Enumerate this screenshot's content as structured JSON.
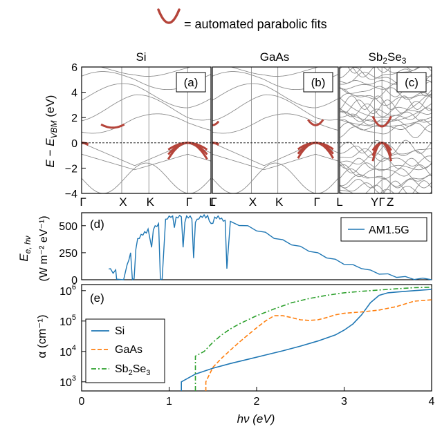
{
  "legend_top": {
    "text": "= automated parabolic fits",
    "fit_color": "#b5443a"
  },
  "colors": {
    "band": "#8c8c8c",
    "fit": "#b5443a",
    "si": "#1f77b4",
    "gaas": "#ff7f0e",
    "sb2se3": "#2ca02c",
    "spectrum": "#1f77b4"
  },
  "chart_data": [
    {
      "type": "line",
      "panel": "(a)",
      "title": "Si",
      "ylabel": "E − E_VBM (eV)",
      "ylim": [
        -4,
        6
      ],
      "yticks": [
        "6",
        "4",
        "2",
        "0",
        "−2",
        "−4"
      ],
      "kpath": [
        "Γ",
        "X",
        "K",
        "Γ",
        "L"
      ],
      "kpos": [
        0,
        0.31,
        0.52,
        0.82,
        1.0
      ],
      "vbm": 0,
      "cbm": 1.2,
      "fits": [
        {
          "k": 0.24,
          "e": 1.2,
          "dir": "up",
          "curv": 1.6,
          "half_width": 0.09
        },
        {
          "k": 0.0,
          "e": 0.0,
          "dir": "down",
          "curv": 1.4,
          "half_width": 0.05
        },
        {
          "k": 0.82,
          "e": 0.0,
          "dir": "down",
          "curv": 1.2,
          "half_width": 0.15
        }
      ]
    },
    {
      "type": "line",
      "panel": "(b)",
      "title": "GaAs",
      "ylim": [
        -4,
        6
      ],
      "kpath": [
        "Γ",
        "X",
        "K",
        "Γ",
        "L"
      ],
      "kpos": [
        0,
        0.31,
        0.52,
        0.82,
        1.0
      ],
      "vbm": 0,
      "cbm": 1.4,
      "fits": [
        {
          "k": 0.0,
          "e": 1.4,
          "dir": "up",
          "curv": 6.0,
          "half_width": 0.05
        },
        {
          "k": 0.82,
          "e": 1.4,
          "dir": "up",
          "curv": 6.0,
          "half_width": 0.06
        },
        {
          "k": 0.0,
          "e": 0.0,
          "dir": "down",
          "curv": 1.4,
          "half_width": 0.05
        },
        {
          "k": 0.82,
          "e": 0.0,
          "dir": "down",
          "curv": 1.3,
          "half_width": 0.14
        }
      ]
    },
    {
      "type": "line",
      "panel": "(c)",
      "title": "Sb2Se3",
      "title_main": "Sb",
      "title_sub1": "2",
      "title_mid": "Se",
      "title_sub2": "3",
      "ylim": [
        -4,
        6
      ],
      "kpath": [
        "Y",
        "Γ",
        "Z"
      ],
      "kpos": [
        0.38,
        0.46,
        0.55
      ],
      "vbm": 0,
      "cbm": 1.3,
      "fits": [
        {
          "k": 0.46,
          "e": 1.3,
          "dir": "up",
          "curv": 4.0,
          "half_width": 0.1
        },
        {
          "k": 0.46,
          "e": 0.0,
          "dir": "down",
          "curv": 3.0,
          "half_width": 0.1
        }
      ]
    },
    {
      "type": "line",
      "panel": "(d)",
      "ylabel_main": "E",
      "ylabel_sub": "e, hν",
      "ylabel_units": "(W m⁻² eV⁻¹)",
      "xlim": [
        0,
        4
      ],
      "ylim": [
        0,
        620
      ],
      "yticks": [
        0,
        250,
        500
      ],
      "series": [
        {
          "name": "AM1.5G",
          "x": [
            0.31,
            0.33,
            0.36,
            0.39,
            0.4,
            0.48,
            0.52,
            0.54,
            0.56,
            0.58,
            0.6,
            0.62,
            0.64,
            0.66,
            0.68,
            0.7,
            0.72,
            0.74,
            0.76,
            0.78,
            0.8,
            0.82,
            0.84,
            0.86,
            0.88,
            0.9,
            0.92,
            0.94,
            0.96,
            0.98,
            1.0,
            1.02,
            1.04,
            1.06,
            1.08,
            1.1,
            1.12,
            1.14,
            1.16,
            1.18,
            1.2,
            1.22,
            1.24,
            1.26,
            1.28,
            1.3,
            1.32,
            1.34,
            1.36,
            1.38,
            1.4,
            1.42,
            1.44,
            1.46,
            1.48,
            1.5,
            1.52,
            1.54,
            1.56,
            1.58,
            1.6,
            1.62,
            1.64,
            1.66,
            1.7,
            1.8,
            1.9,
            2.0,
            2.1,
            2.2,
            2.3,
            2.4,
            2.5,
            2.6,
            2.7,
            2.8,
            2.9,
            3.0,
            3.1,
            3.2,
            3.3,
            3.4,
            3.5,
            3.6,
            3.7,
            3.8,
            3.9,
            4.0
          ],
          "y": [
            100,
            120,
            60,
            110,
            5,
            2,
            140,
            200,
            250,
            5,
            10,
            300,
            380,
            400,
            420,
            430,
            445,
            450,
            470,
            400,
            300,
            480,
            500,
            510,
            520,
            20,
            5,
            300,
            560,
            580,
            590,
            595,
            590,
            500,
            580,
            590,
            595,
            600,
            300,
            550,
            590,
            590,
            590,
            580,
            200,
            550,
            560,
            580,
            590,
            595,
            600,
            590,
            595,
            560,
            520,
            540,
            580,
            585,
            590,
            580,
            570,
            560,
            550,
            120,
            540,
            520,
            500,
            470,
            440,
            400,
            370,
            340,
            310,
            280,
            250,
            220,
            190,
            160,
            140,
            120,
            90,
            70,
            55,
            40,
            30,
            20,
            15,
            10
          ]
        }
      ]
    },
    {
      "type": "line",
      "panel": "(e)",
      "ylabel": "α (cm⁻¹)",
      "xlabel": "hν (eV)",
      "xlim": [
        0,
        4
      ],
      "ylim_log10": [
        2.7,
        6.2
      ],
      "xticks": [
        0,
        1,
        2,
        3,
        4
      ],
      "yticks_log10": [
        3,
        4,
        5,
        6
      ],
      "series": [
        {
          "name": "Si",
          "style": "solid",
          "x": [
            1.14,
            1.14,
            1.3,
            1.5,
            1.7,
            1.9,
            2.1,
            2.3,
            2.5,
            2.7,
            2.9,
            3.0,
            3.1,
            3.2,
            3.3,
            3.4,
            3.5,
            3.6,
            3.8,
            4.0
          ],
          "y": [
            500,
            1000,
            1800,
            2800,
            4000,
            5500,
            7600,
            10500,
            15000,
            22000,
            35000,
            50000,
            80000,
            160000,
            400000,
            700000,
            850000,
            900000,
            1000000,
            1100000
          ]
        },
        {
          "name": "GaAs",
          "style": "dash",
          "x": [
            1.42,
            1.42,
            1.5,
            1.6,
            1.7,
            1.8,
            1.9,
            2.0,
            2.1,
            2.2,
            2.3,
            2.4,
            2.5,
            2.6,
            2.7,
            2.8,
            2.9,
            3.0,
            3.2,
            3.4,
            3.6,
            3.8,
            4.0
          ],
          "y": [
            500,
            1000,
            3000,
            6000,
            11000,
            20000,
            35000,
            60000,
            100000,
            150000,
            150000,
            130000,
            110000,
            105000,
            110000,
            130000,
            160000,
            180000,
            200000,
            230000,
            300000,
            450000,
            500000
          ]
        },
        {
          "name": "Sb2Se3",
          "name_main": "Sb",
          "name_sub1": "2",
          "name_mid": "Se",
          "name_sub2": "3",
          "style": "dashdot",
          "x": [
            1.3,
            1.3,
            1.4,
            1.5,
            1.6,
            1.7,
            1.8,
            2.0,
            2.2,
            2.4,
            2.6,
            2.8,
            3.0,
            3.2,
            3.4,
            3.6,
            3.8,
            4.0
          ],
          "y": [
            500,
            7000,
            10000,
            20000,
            35000,
            55000,
            80000,
            150000,
            250000,
            400000,
            550000,
            700000,
            850000,
            950000,
            1050000,
            1150000,
            1250000,
            1300000
          ]
        }
      ]
    }
  ]
}
